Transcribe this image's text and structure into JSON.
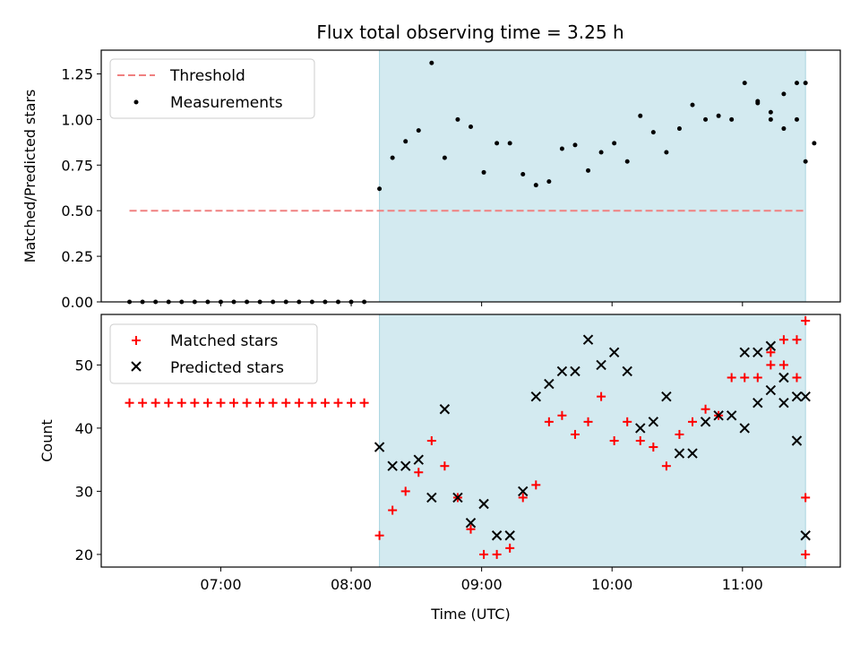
{
  "chart_data": [
    {
      "type": "scatter",
      "title": "Flux total observing time = 3.25 h",
      "xlabel": "",
      "ylabel": "Matched/Predicted stars",
      "ylim": [
        0,
        1.38
      ],
      "yticks": [
        "0.00",
        "0.25",
        "0.50",
        "0.75",
        "1.00",
        "1.25"
      ],
      "shaded_region_x": [
        "08:13",
        "11:29"
      ],
      "shade_color": "#d3eaf0",
      "threshold": {
        "name": "Threshold",
        "value": 0.5,
        "x_range": [
          "06:18",
          "11:29"
        ],
        "color": "#f08080"
      },
      "series": [
        {
          "name": "Measurements",
          "marker": "dot",
          "color": "#000000",
          "x": [
            "06:18",
            "06:24",
            "06:30",
            "06:36",
            "06:42",
            "06:48",
            "06:54",
            "07:00",
            "07:06",
            "07:12",
            "07:18",
            "07:24",
            "07:30",
            "07:36",
            "07:42",
            "07:48",
            "07:54",
            "08:00",
            "08:06",
            "08:13",
            "08:19",
            "08:25",
            "08:31",
            "08:37",
            "08:43",
            "08:49",
            "08:55",
            "09:01",
            "09:07",
            "09:13",
            "09:19",
            "09:25",
            "09:31",
            "09:37",
            "09:43",
            "09:49",
            "09:55",
            "10:01",
            "10:07",
            "10:13",
            "10:19",
            "10:25",
            "10:31",
            "10:37",
            "10:43",
            "10:49",
            "10:55",
            "11:01",
            "11:07",
            "11:13",
            "11:19",
            "11:25",
            "11:29"
          ],
          "y": [
            0,
            0,
            0,
            0,
            0,
            0,
            0,
            0,
            0,
            0,
            0,
            0,
            0,
            0,
            0,
            0,
            0,
            0,
            0,
            0.62,
            0.79,
            0.88,
            0.94,
            1.31,
            0.79,
            1.0,
            0.96,
            0.71,
            0.87,
            0.87,
            0.7,
            0.64,
            0.66,
            0.84,
            0.86,
            0.72,
            0.82,
            0.87,
            0.77,
            1.02,
            0.93,
            0.82,
            0.95,
            1.08,
            1.0,
            1.02,
            1.0,
            1.2,
            1.09,
            1.04,
            1.14,
            1.2,
            1.2
          ]
        }
      ]
    },
    {
      "type": "scatter",
      "title": "",
      "xlabel": "Time (UTC)",
      "ylabel": "Count",
      "ylim": [
        18,
        58
      ],
      "yticks": [
        "20",
        "30",
        "40",
        "50"
      ],
      "xticks": [
        "07:00",
        "08:00",
        "09:00",
        "10:00",
        "11:00"
      ],
      "shaded_region_x": [
        "08:13",
        "11:29"
      ],
      "series": [
        {
          "name": "Matched stars",
          "marker": "plus",
          "color": "#ff0000",
          "x": [
            "06:18",
            "06:24",
            "06:30",
            "06:36",
            "06:42",
            "06:48",
            "06:54",
            "07:00",
            "07:06",
            "07:12",
            "07:18",
            "07:24",
            "07:30",
            "07:36",
            "07:42",
            "07:48",
            "07:54",
            "08:00",
            "08:06",
            "08:13",
            "08:19",
            "08:25",
            "08:31",
            "08:37",
            "08:43",
            "08:49",
            "08:55",
            "09:01",
            "09:07",
            "09:13",
            "09:19",
            "09:25",
            "09:31",
            "09:37",
            "09:43",
            "09:49",
            "09:55",
            "10:01",
            "10:07",
            "10:13",
            "10:19",
            "10:25",
            "10:31",
            "10:37",
            "10:43",
            "10:49",
            "10:55",
            "11:01",
            "11:07",
            "11:13",
            "11:19",
            "11:25",
            "11:29"
          ],
          "y": [
            44,
            44,
            44,
            44,
            44,
            44,
            44,
            44,
            44,
            44,
            44,
            44,
            44,
            44,
            44,
            44,
            44,
            44,
            44,
            23,
            27,
            30,
            33,
            38,
            34,
            29,
            24,
            20,
            20,
            21,
            29,
            31,
            41,
            42,
            39,
            41,
            45,
            38,
            41,
            38,
            37,
            34,
            39,
            41,
            43,
            42,
            48,
            48,
            48,
            50,
            54,
            54,
            57
          ]
        },
        {
          "name": "Predicted stars",
          "marker": "x",
          "color": "#000000",
          "x": [
            "08:13",
            "08:19",
            "08:25",
            "08:31",
            "08:37",
            "08:43",
            "08:49",
            "08:55",
            "09:01",
            "09:07",
            "09:13",
            "09:19",
            "09:25",
            "09:31",
            "09:37",
            "09:43",
            "09:49",
            "09:55",
            "10:01",
            "10:07",
            "10:13",
            "10:19",
            "10:25",
            "10:31",
            "10:37",
            "10:43",
            "10:49",
            "10:55",
            "11:01",
            "11:07",
            "11:13",
            "11:19",
            "11:25",
            "11:29"
          ],
          "y": [
            37,
            34,
            34,
            35,
            29,
            43,
            29,
            25,
            28,
            23,
            23,
            30,
            45,
            47,
            49,
            49,
            54,
            50,
            52,
            49,
            40,
            41,
            45,
            36,
            36,
            41,
            42,
            42,
            40,
            44,
            46,
            44,
            45,
            45
          ]
        }
      ],
      "extra_matched_tail": [
        {
          "x": "11:13",
          "y": 52
        },
        {
          "x": "11:19",
          "y": 50
        },
        {
          "x": "11:25",
          "y": 48
        },
        {
          "x": "11:29",
          "y": 29
        },
        {
          "x": "11:29",
          "y": 20
        }
      ],
      "extra_predicted_tail": [
        {
          "x": "11:01",
          "y": 52
        },
        {
          "x": "11:07",
          "y": 52
        },
        {
          "x": "11:13",
          "y": 53
        },
        {
          "x": "11:19",
          "y": 48
        },
        {
          "x": "11:25",
          "y": 38
        },
        {
          "x": "11:29",
          "y": 23
        }
      ]
    }
  ]
}
